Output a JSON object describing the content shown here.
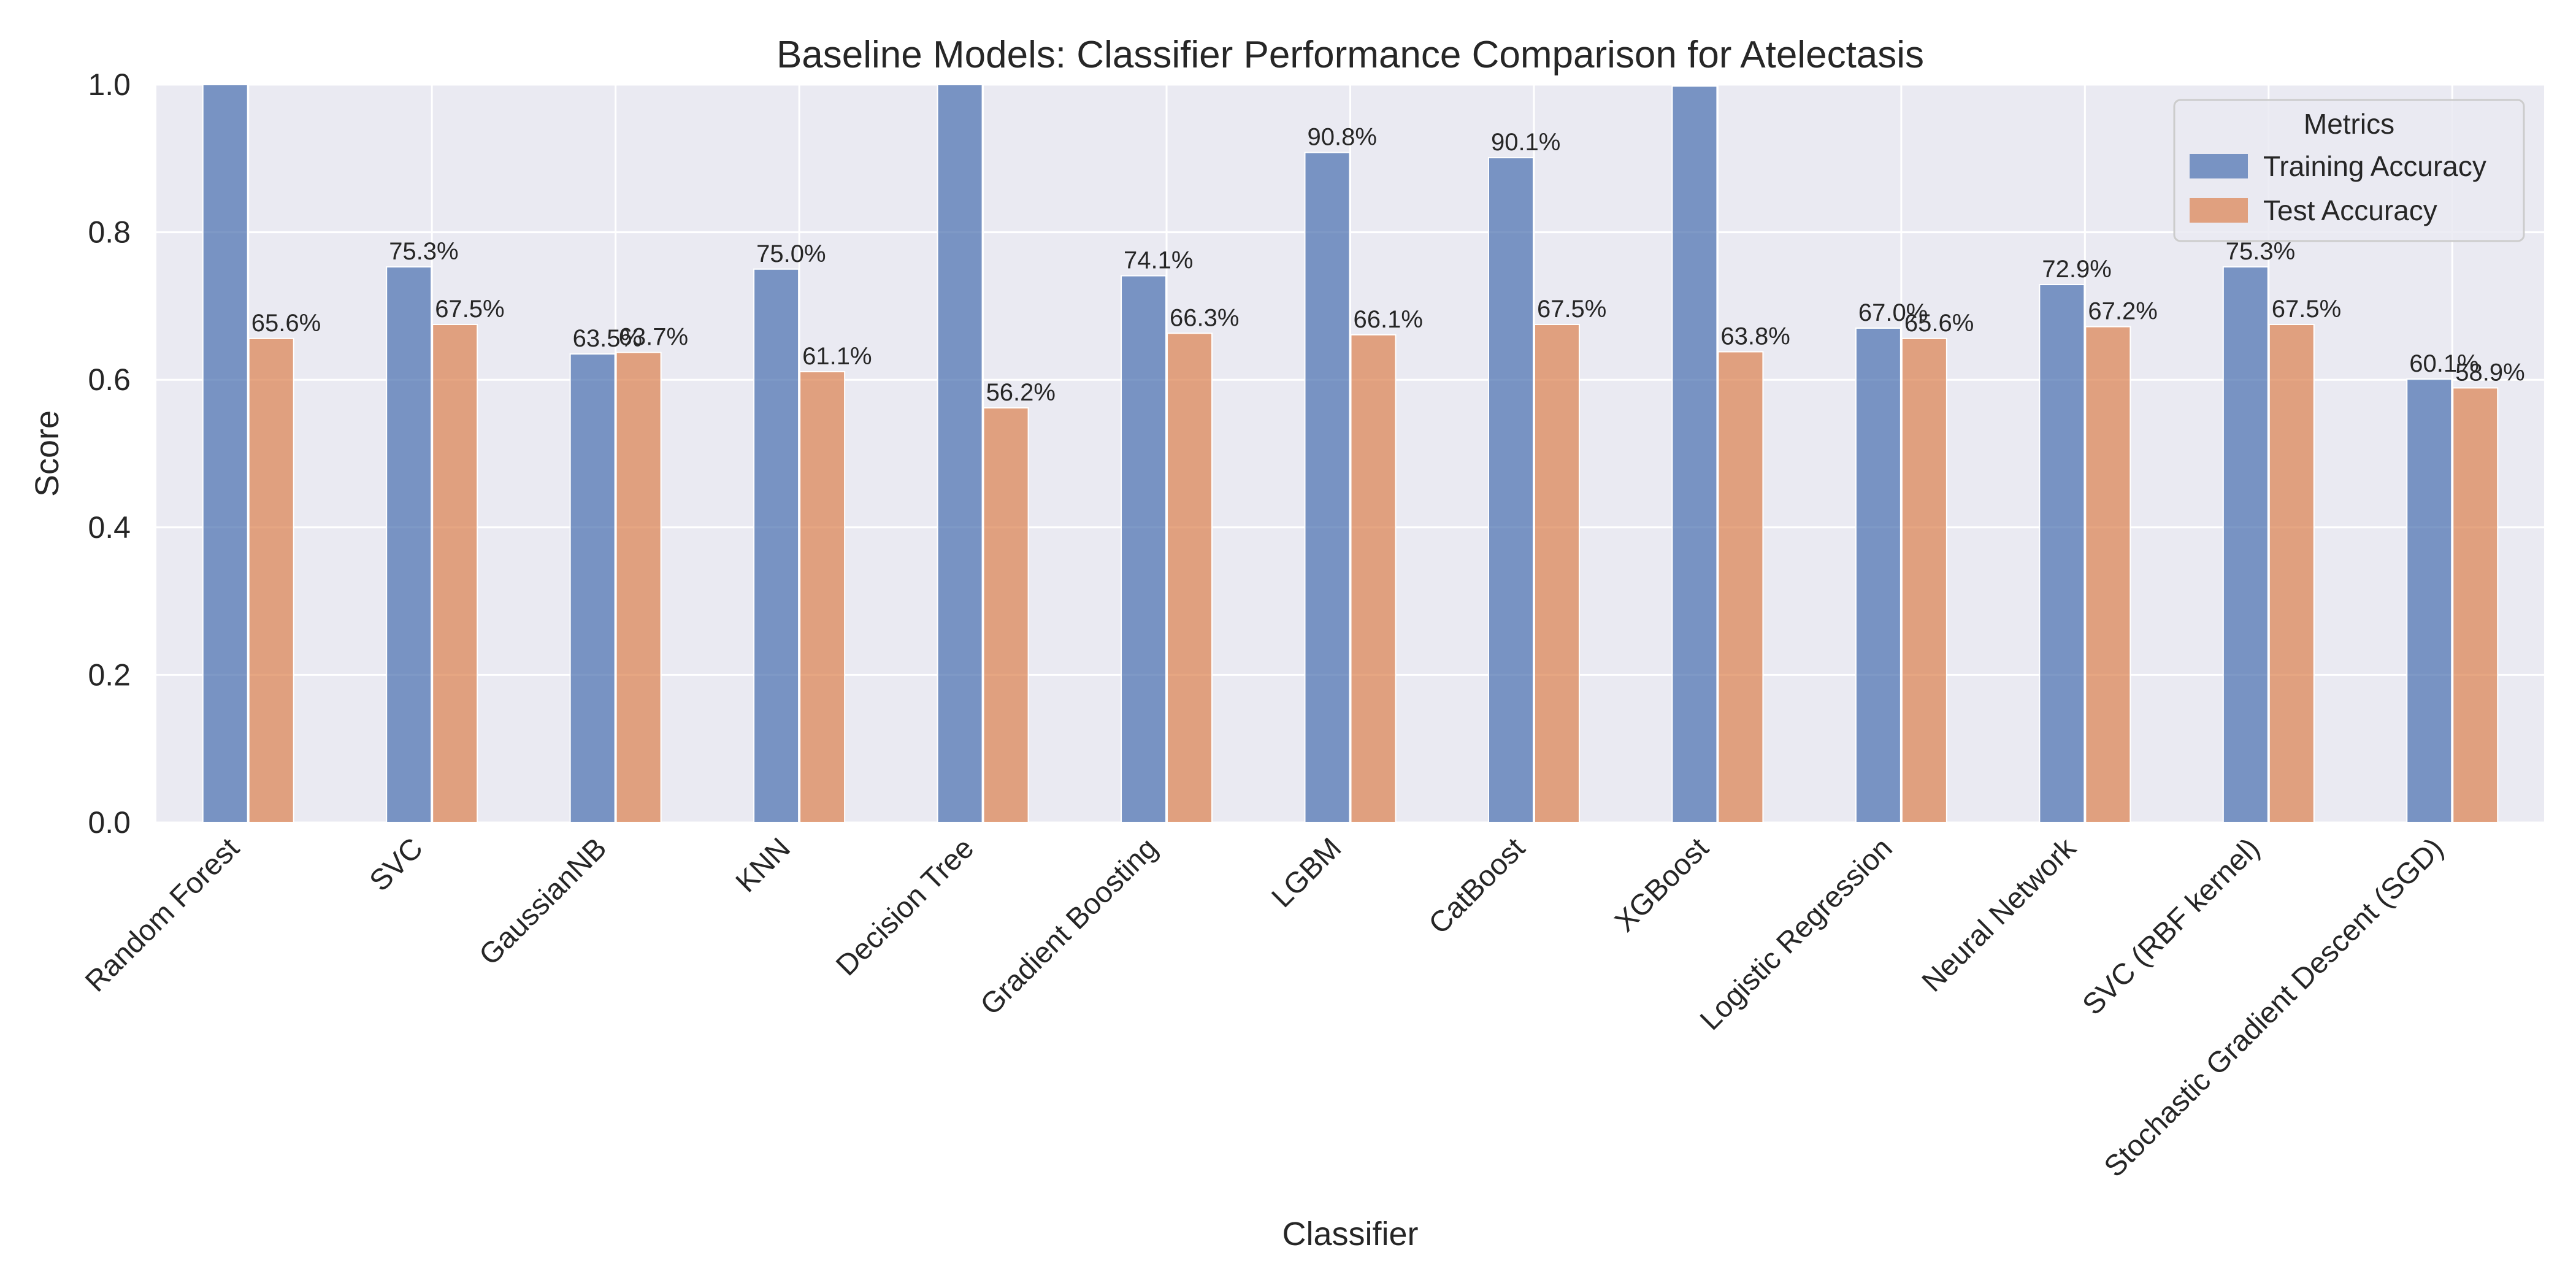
{
  "chart_data": {
    "type": "bar",
    "title": "Baseline Models: Classifier Performance Comparison for Atelectasis",
    "xlabel": "Classifier",
    "ylabel": "Score",
    "ylim": [
      0,
      1.0
    ],
    "yticks": [
      "0.0",
      "0.2",
      "0.4",
      "0.6",
      "0.8",
      "1.0"
    ],
    "ytick_values": [
      0,
      0.2,
      0.4,
      0.6,
      0.8,
      1.0
    ],
    "grid": true,
    "legend": {
      "title": "Metrics",
      "placement": "top-right"
    },
    "categories": [
      "Random Forest",
      "SVC",
      "GaussianNB",
      "KNN",
      "Decision Tree",
      "Gradient Boosting",
      "LGBM",
      "CatBoost",
      "XGBoost",
      "Logistic Regression",
      "Neural Network",
      "SVC (RBF kernel)",
      "Stochastic Gradient Descent (SGD)"
    ],
    "series": [
      {
        "name": "Training Accuracy",
        "color": "#4C72B0",
        "values": [
          1.0,
          0.753,
          0.635,
          0.75,
          1.0,
          0.741,
          0.908,
          0.901,
          0.998,
          0.67,
          0.729,
          0.753,
          0.601
        ],
        "labels": [
          "",
          "75.3%",
          "63.5%",
          "75.0%",
          "",
          "74.1%",
          "90.8%",
          "90.1%",
          "",
          "67.0%",
          "72.9%",
          "75.3%",
          "60.1%"
        ]
      },
      {
        "name": "Test Accuracy",
        "color": "#DD8452",
        "values": [
          0.656,
          0.675,
          0.637,
          0.611,
          0.562,
          0.663,
          0.661,
          0.675,
          0.638,
          0.656,
          0.672,
          0.675,
          0.589
        ],
        "labels": [
          "65.6%",
          "67.5%",
          "63.7%",
          "61.1%",
          "56.2%",
          "66.3%",
          "66.1%",
          "67.5%",
          "63.8%",
          "65.6%",
          "67.2%",
          "67.5%",
          "58.9%"
        ]
      }
    ]
  },
  "colors": {
    "plot_background": "#EAEAF2",
    "grid": "#FFFFFF",
    "text": "#262626"
  }
}
